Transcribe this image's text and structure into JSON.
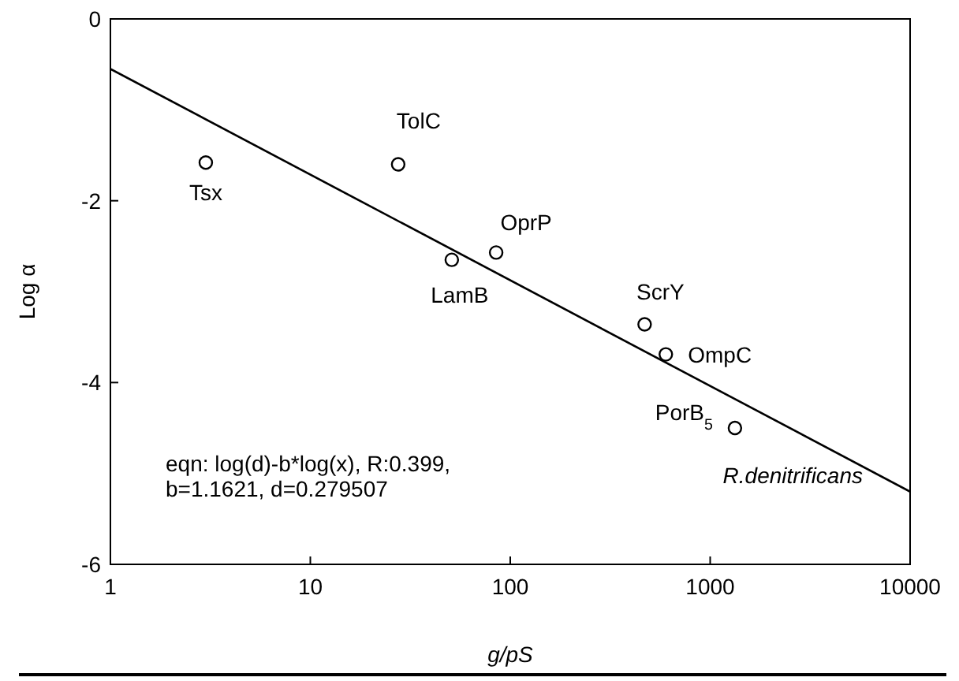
{
  "chart_data": {
    "type": "scatter",
    "xlabel": "g/pS",
    "ylabel": "Log α",
    "log": "x",
    "grid": false,
    "xlim": [
      1,
      10000
    ],
    "ylim": [
      -6,
      0
    ],
    "xticks": [
      1,
      10,
      100,
      1000,
      10000
    ],
    "yticks": [
      0,
      -2,
      -4,
      -6
    ],
    "series": [
      {
        "color": "#000000",
        "marker": "circle",
        "x": [
          3,
          27.5,
          51,
          85,
          470,
          600,
          1330
        ],
        "values": [
          -1.58,
          -1.6,
          -2.65,
          -2.57,
          -3.36,
          -3.69,
          -4.5
        ]
      },
      {
        "type": "line",
        "color": "#000000",
        "line_style": "solid",
        "marker": "none",
        "x": [
          1,
          10000
        ],
        "values": [
          -0.55,
          -5.2
        ]
      }
    ],
    "annotations": [
      {
        "text": "Tsx",
        "x": 3,
        "y": -1.58
      },
      {
        "text": "TolC",
        "x": 27.5,
        "y": -1.6
      },
      {
        "text": "LamB",
        "x": 51,
        "y": -2.65
      },
      {
        "text": "OprP",
        "x": 85,
        "y": -2.57
      },
      {
        "text": "ScrY",
        "x": 470,
        "y": -3.36
      },
      {
        "text": "OmpC",
        "x": 600,
        "y": -3.69
      },
      {
        "text": "PorB$_{5}$",
        "x": 1330,
        "y": -4.5
      },
      "R.denitrificans",
      "eqn: log(d)-b*log(x), R:0.399,",
      "b=1.1621, d=0.279507"
    ]
  }
}
